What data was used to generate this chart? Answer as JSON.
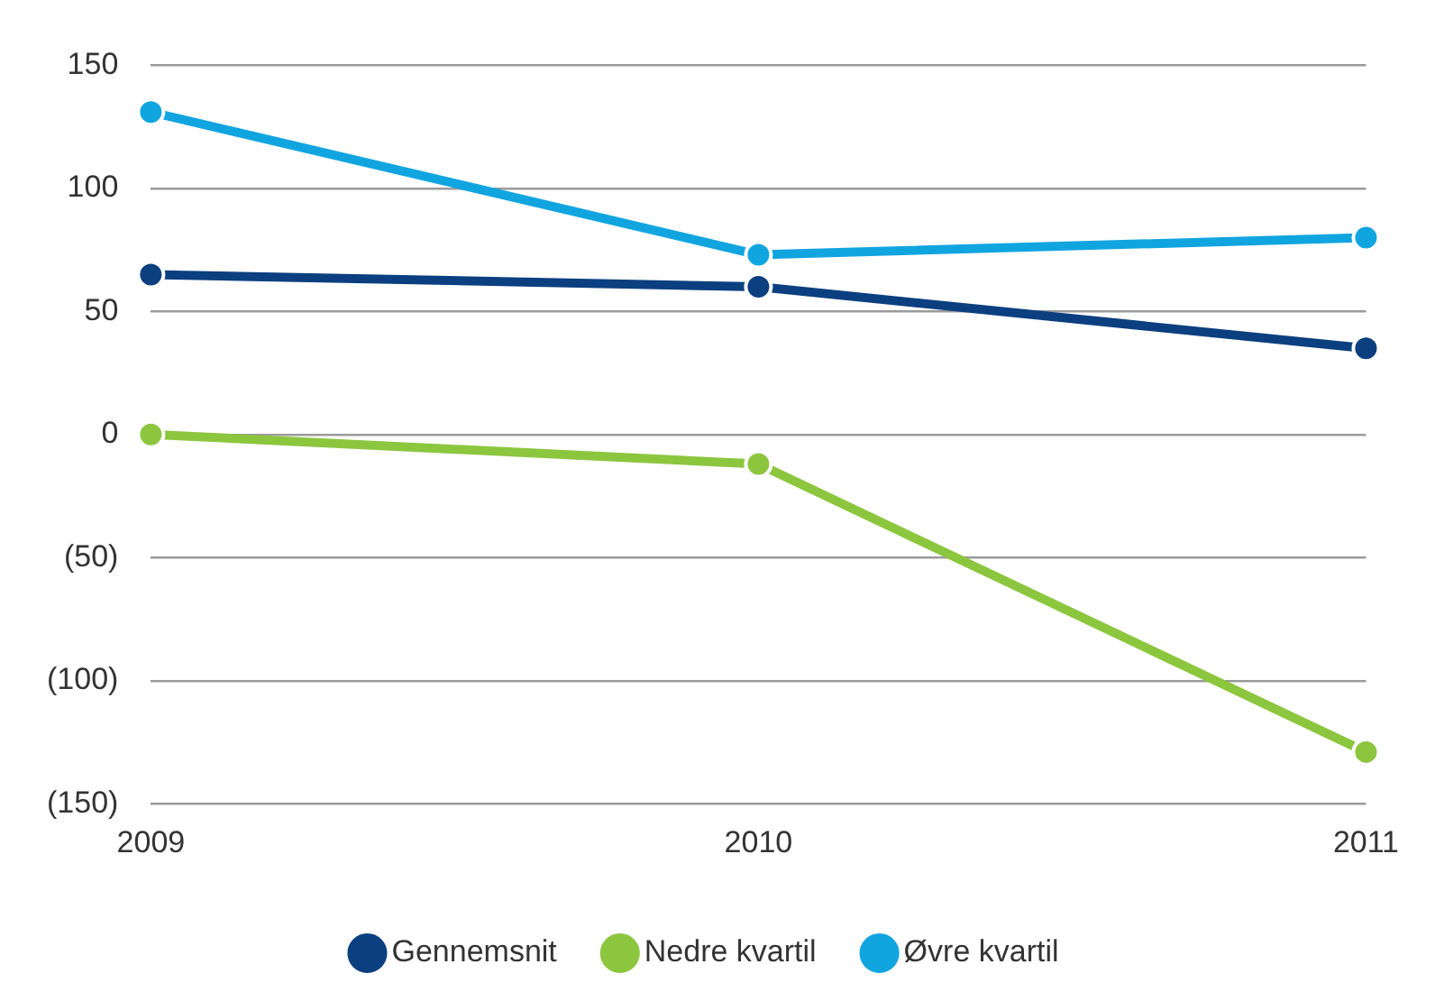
{
  "chart_data": {
    "type": "line",
    "categories": [
      "2009",
      "2010",
      "2011"
    ],
    "series": [
      {
        "name": "Gennemsnit",
        "color": "#0b3f7f",
        "values": [
          65,
          60,
          35
        ]
      },
      {
        "name": "Nedre kvartil",
        "color": "#8cc63e",
        "values": [
          0,
          -12,
          -129
        ]
      },
      {
        "name": "Øvre kvartil",
        "color": "#11a5e0",
        "values": [
          131,
          73,
          80
        ]
      }
    ],
    "ylim": [
      -150,
      150
    ],
    "yticks": [
      {
        "value": -150,
        "label": "(150)"
      },
      {
        "value": -100,
        "label": "(100)"
      },
      {
        "value": -50,
        "label": "(50)"
      },
      0,
      50,
      100,
      150
    ],
    "grid": "y",
    "legend": "bottom",
    "marker": "circle",
    "line_style": "solid"
  }
}
